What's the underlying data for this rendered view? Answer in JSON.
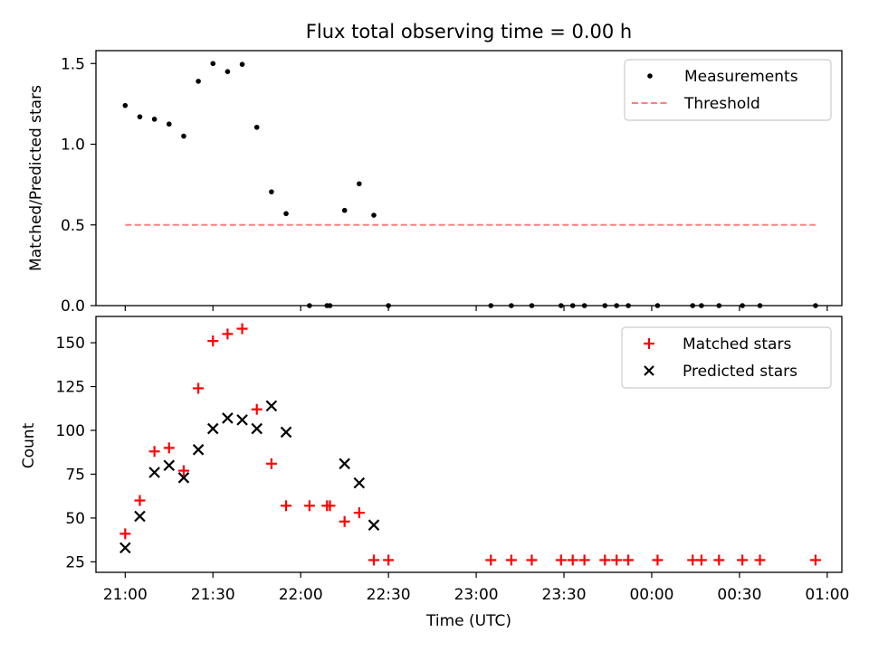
{
  "title": "Flux total observing time = 0.00 h",
  "colors": {
    "measure": "#000000",
    "threshold": "#ff7f7f",
    "matched": "#ff0000",
    "predicted": "#000000"
  },
  "chart_data": [
    {
      "type": "scatter",
      "ylabel": "Matched/Predicted stars",
      "ylim": [
        0,
        1.58
      ],
      "yticks": [
        0,
        0.5,
        1.0,
        1.5
      ],
      "ytick_labels": [
        "0.0",
        "0.5",
        "1.0",
        "1.5"
      ],
      "legend": {
        "placement": "top-right",
        "entries": [
          "Measurements",
          "Threshold"
        ]
      },
      "series": [
        {
          "name": "Measurements",
          "x": [
            "21:00",
            "21:05",
            "21:10",
            "21:15",
            "21:20",
            "21:25",
            "21:30",
            "21:35",
            "21:40",
            "21:45",
            "21:50",
            "21:55",
            "22:03",
            "22:09",
            "22:10",
            "22:15",
            "22:20",
            "22:25",
            "22:30",
            "23:05",
            "23:12",
            "23:19",
            "23:29",
            "23:33",
            "23:37",
            "23:44",
            "23:48",
            "23:52",
            "24:02",
            "24:14",
            "24:17",
            "24:23",
            "24:31",
            "24:37",
            "24:56"
          ],
          "y": [
            1.24,
            1.17,
            1.155,
            1.125,
            1.05,
            1.39,
            1.5,
            1.45,
            1.495,
            1.105,
            0.705,
            0.57,
            0,
            0,
            0,
            0.59,
            0.755,
            0.56,
            0,
            0,
            0,
            0,
            0,
            0,
            0,
            0,
            0,
            0,
            0,
            0,
            0,
            0,
            0,
            0,
            0
          ]
        },
        {
          "name": "Threshold",
          "x": [
            "21:00",
            "24:56"
          ],
          "y": [
            0.5,
            0.5
          ]
        }
      ]
    },
    {
      "type": "scatter",
      "xlabel": "Time (UTC)",
      "ylabel": "Count",
      "ylim": [
        19,
        165
      ],
      "yticks": [
        25,
        50,
        75,
        100,
        125,
        150
      ],
      "xlim": [
        "20:50",
        "25:05"
      ],
      "xticks": [
        "21:00",
        "21:30",
        "22:00",
        "22:30",
        "23:00",
        "23:30",
        "00:00",
        "00:30",
        "01:00"
      ],
      "legend": {
        "placement": "top-right",
        "entries": [
          "Matched stars",
          "Predicted stars"
        ]
      },
      "series": [
        {
          "name": "Matched stars",
          "x": [
            "21:00",
            "21:05",
            "21:10",
            "21:15",
            "21:20",
            "21:25",
            "21:30",
            "21:35",
            "21:40",
            "21:45",
            "21:50",
            "21:55",
            "22:03",
            "22:09",
            "22:10",
            "22:15",
            "22:20",
            "22:25",
            "22:30",
            "23:05",
            "23:12",
            "23:19",
            "23:29",
            "23:33",
            "23:37",
            "23:44",
            "23:48",
            "23:52",
            "24:02",
            "24:14",
            "24:17",
            "24:23",
            "24:31",
            "24:37",
            "24:56"
          ],
          "y": [
            41,
            60,
            88,
            90,
            77,
            124,
            151,
            155,
            158,
            112,
            81,
            57,
            57,
            57,
            57,
            48,
            53,
            26,
            26,
            26,
            26,
            26,
            26,
            26,
            26,
            26,
            26,
            26,
            26,
            26,
            26,
            26,
            26,
            26,
            26
          ]
        },
        {
          "name": "Predicted stars",
          "x": [
            "21:00",
            "21:05",
            "21:10",
            "21:15",
            "21:20",
            "21:25",
            "21:30",
            "21:35",
            "21:40",
            "21:45",
            "21:50",
            "21:55",
            "22:15",
            "22:20",
            "22:25"
          ],
          "y": [
            33,
            51,
            76,
            80,
            73,
            89,
            101,
            107,
            106,
            101,
            114,
            99,
            81,
            70,
            46
          ]
        }
      ]
    }
  ]
}
